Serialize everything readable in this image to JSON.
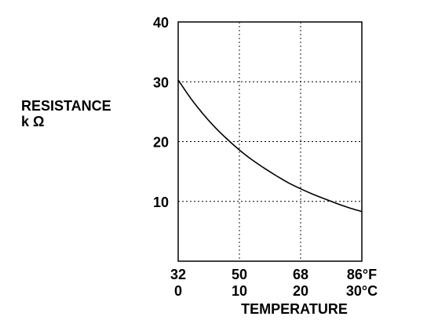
{
  "chart_data": {
    "type": "line",
    "ylabel": [
      "RESISTANCE",
      "k Ω"
    ],
    "xlabel": "TEMPERATURE",
    "xlim": [
      0,
      30
    ],
    "ylim": [
      0,
      40
    ],
    "y_ticks": [
      10,
      20,
      30,
      40
    ],
    "x_ticks_f": [
      "32",
      "50",
      "68",
      "86°F"
    ],
    "x_ticks_c": [
      "0",
      "10",
      "20",
      "30°C"
    ],
    "x_tick_values_c": [
      0,
      10,
      20,
      30
    ],
    "grid": true,
    "series": [
      {
        "x": [
          0,
          2,
          4,
          6,
          8,
          10,
          12,
          14,
          16,
          18,
          20,
          22,
          24,
          26,
          28,
          30
        ],
        "values": [
          30.3,
          27.3,
          24.7,
          22.4,
          20.4,
          18.6,
          17.0,
          15.6,
          14.3,
          13.1,
          12.1,
          11.2,
          10.4,
          9.6,
          8.9,
          8.3
        ]
      }
    ]
  }
}
